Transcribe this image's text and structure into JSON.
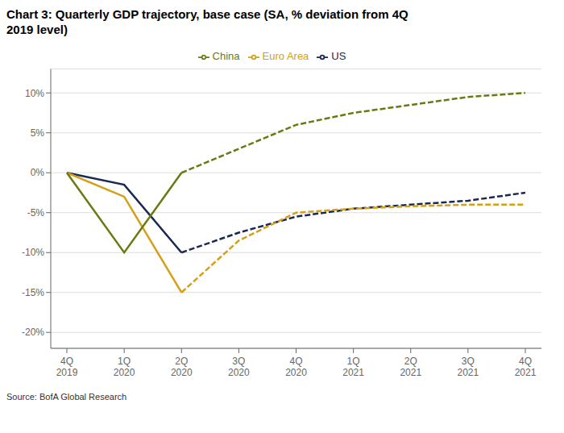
{
  "chart_data": {
    "type": "line",
    "title": "Chart 3: Quarterly GDP trajectory, base case (SA, % deviation from 4Q\n2019 level)",
    "annotations": [
      "Source: BofA Global Research"
    ],
    "categories": [
      "4Q\n2019",
      "1Q\n2020",
      "2Q\n2020",
      "3Q\n2020",
      "4Q\n2020",
      "1Q\n2021",
      "2Q\n2021",
      "3Q\n2021",
      "4Q\n2021"
    ],
    "series": [
      {
        "name": "US",
        "color": "#1a2954",
        "line_style": "solid",
        "values": [
          0,
          -1.5,
          -10.0,
          null,
          null,
          null,
          null,
          null,
          null
        ]
      },
      {
        "name": "US",
        "color": "#1a2954",
        "line_style": "dashed",
        "values": [
          null,
          null,
          -10.0,
          -7.5,
          -5.5,
          -4.5,
          -4.0,
          -3.5,
          -2.5
        ]
      },
      {
        "name": "Euro Area",
        "color": "#d4a017",
        "line_style": "solid",
        "values": [
          0,
          -3.0,
          -15.0,
          null,
          null,
          null,
          null,
          null,
          null
        ]
      },
      {
        "name": "Euro Area",
        "color": "#d4a017",
        "line_style": "dashed",
        "values": [
          null,
          null,
          -15.0,
          -8.5,
          -5.0,
          -4.5,
          -4.2,
          -4.0,
          -4.0
        ]
      },
      {
        "name": "China",
        "color": "#6b7a10",
        "line_style": "solid",
        "values": [
          0,
          -10.0,
          0.0,
          null,
          null,
          null,
          null,
          null,
          null
        ]
      },
      {
        "name": "China",
        "color": "#6b7a10",
        "line_style": "dashed",
        "values": [
          null,
          null,
          0.0,
          3.0,
          6.0,
          7.5,
          8.5,
          9.5,
          10.0
        ]
      }
    ],
    "ylim": [
      -22,
      13
    ],
    "yticks": [
      {
        "value": -20,
        "label": "-20%"
      },
      {
        "value": -15,
        "label": "-15%"
      },
      {
        "value": -10,
        "label": "-10%"
      },
      {
        "value": -5,
        "label": "-5%"
      },
      {
        "value": 0,
        "label": "0%"
      },
      {
        "value": 5,
        "label": "5%"
      },
      {
        "value": 10,
        "label": "10%"
      }
    ],
    "grid": true,
    "legend": "top"
  }
}
